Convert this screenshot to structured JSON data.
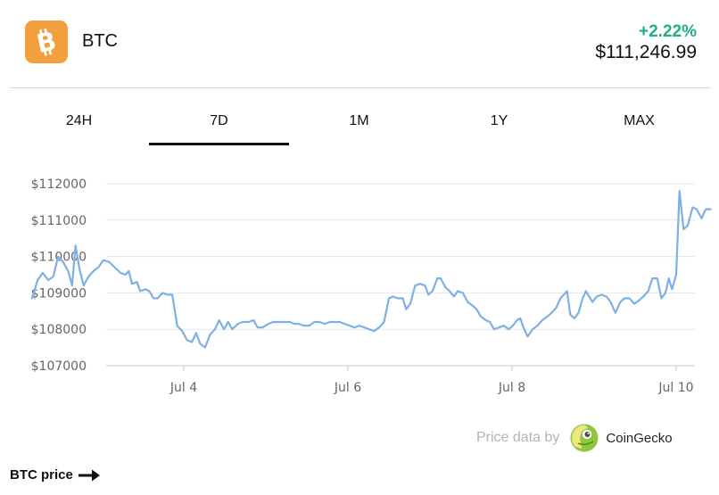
{
  "coin": {
    "symbol": "BTC",
    "change": "+2.22%",
    "price": "$111,246.99",
    "logo_color": "#f2a03d",
    "change_color": "#1fae8a",
    "icon": "bitcoin-icon"
  },
  "tabs": [
    {
      "label": "24H",
      "active": false
    },
    {
      "label": "7D",
      "active": true
    },
    {
      "label": "1M",
      "active": false
    },
    {
      "label": "1Y",
      "active": false
    },
    {
      "label": "MAX",
      "active": false
    }
  ],
  "chart_data": {
    "type": "line",
    "y_ticks": [
      "$112000",
      "$111000",
      "$110000",
      "$109000",
      "$108000",
      "$107000"
    ],
    "y_tick_values": [
      112000,
      111000,
      110000,
      109000,
      108000,
      107000
    ],
    "x_ticks": [
      "Jul 4",
      "Jul 6",
      "Jul 8",
      "Jul 10"
    ],
    "x_tick_values": [
      1.0,
      3.0,
      5.0,
      7.0
    ],
    "ylim": [
      107000,
      112100
    ],
    "xlim": [
      -0.9,
      7.15
    ],
    "grid": true,
    "line_color": "#7eb0e4",
    "series": [
      {
        "values": [
          [
            -0.85,
            108850
          ],
          [
            -0.78,
            109350
          ],
          [
            -0.72,
            109550
          ],
          [
            -0.65,
            109350
          ],
          [
            -0.59,
            109450
          ],
          [
            -0.53,
            110000
          ],
          [
            -0.47,
            109850
          ],
          [
            -0.41,
            109600
          ],
          [
            -0.36,
            109200
          ],
          [
            -0.32,
            110300
          ],
          [
            -0.27,
            109650
          ],
          [
            -0.22,
            109200
          ],
          [
            -0.16,
            109450
          ],
          [
            -0.1,
            109600
          ],
          [
            -0.04,
            109700
          ],
          [
            0.02,
            109900
          ],
          [
            0.09,
            109850
          ],
          [
            0.16,
            109700
          ],
          [
            0.23,
            109550
          ],
          [
            0.29,
            109500
          ],
          [
            0.33,
            109600
          ],
          [
            0.37,
            109250
          ],
          [
            0.43,
            109300
          ],
          [
            0.47,
            109050
          ],
          [
            0.53,
            109100
          ],
          [
            0.58,
            109050
          ],
          [
            0.63,
            108850
          ],
          [
            0.68,
            108850
          ],
          [
            0.74,
            109000
          ],
          [
            0.8,
            108950
          ],
          [
            0.86,
            108950
          ],
          [
            0.92,
            108100
          ],
          [
            0.98,
            107950
          ],
          [
            1.04,
            107700
          ],
          [
            1.1,
            107650
          ],
          [
            1.15,
            107900
          ],
          [
            1.2,
            107600
          ],
          [
            1.26,
            107500
          ],
          [
            1.32,
            107850
          ],
          [
            1.38,
            108000
          ],
          [
            1.43,
            108250
          ],
          [
            1.49,
            108000
          ],
          [
            1.54,
            108200
          ],
          [
            1.59,
            108000
          ],
          [
            1.66,
            108150
          ],
          [
            1.72,
            108200
          ],
          [
            1.79,
            108200
          ],
          [
            1.85,
            108250
          ],
          [
            1.9,
            108050
          ],
          [
            1.96,
            108050
          ],
          [
            2.03,
            108150
          ],
          [
            2.09,
            108200
          ],
          [
            2.16,
            108200
          ],
          [
            2.22,
            108200
          ],
          [
            2.29,
            108200
          ],
          [
            2.35,
            108150
          ],
          [
            2.4,
            108150
          ],
          [
            2.46,
            108100
          ],
          [
            2.53,
            108100
          ],
          [
            2.59,
            108200
          ],
          [
            2.65,
            108200
          ],
          [
            2.72,
            108150
          ],
          [
            2.78,
            108200
          ],
          [
            2.84,
            108200
          ],
          [
            2.9,
            108200
          ],
          [
            2.96,
            108150
          ],
          [
            3.02,
            108100
          ],
          [
            3.08,
            108050
          ],
          [
            3.14,
            108100
          ],
          [
            3.2,
            108050
          ],
          [
            3.26,
            108000
          ],
          [
            3.32,
            107950
          ],
          [
            3.38,
            108050
          ],
          [
            3.44,
            108200
          ],
          [
            3.5,
            108850
          ],
          [
            3.55,
            108900
          ],
          [
            3.61,
            108850
          ],
          [
            3.67,
            108850
          ],
          [
            3.71,
            108550
          ],
          [
            3.76,
            108700
          ],
          [
            3.82,
            109200
          ],
          [
            3.88,
            109250
          ],
          [
            3.94,
            109200
          ],
          [
            3.98,
            108950
          ],
          [
            4.03,
            109050
          ],
          [
            4.09,
            109400
          ],
          [
            4.13,
            109400
          ],
          [
            4.19,
            109150
          ],
          [
            4.24,
            109050
          ],
          [
            4.29,
            108900
          ],
          [
            4.34,
            109050
          ],
          [
            4.4,
            109000
          ],
          [
            4.46,
            108750
          ],
          [
            4.52,
            108650
          ],
          [
            4.57,
            108550
          ],
          [
            4.62,
            108350
          ],
          [
            4.68,
            108250
          ],
          [
            4.73,
            108200
          ],
          [
            4.78,
            108000
          ],
          [
            4.84,
            108050
          ],
          [
            4.9,
            108100
          ],
          [
            4.96,
            108000
          ],
          [
            5.01,
            108100
          ],
          [
            5.06,
            108250
          ],
          [
            5.1,
            108300
          ],
          [
            5.14,
            108050
          ],
          [
            5.19,
            107800
          ],
          [
            5.25,
            108000
          ],
          [
            5.31,
            108100
          ],
          [
            5.37,
            108250
          ],
          [
            5.43,
            108350
          ],
          [
            5.48,
            108450
          ],
          [
            5.54,
            108600
          ],
          [
            5.59,
            108850
          ],
          [
            5.63,
            108950
          ],
          [
            5.67,
            109050
          ],
          [
            5.71,
            108400
          ],
          [
            5.76,
            108300
          ],
          [
            5.81,
            108450
          ],
          [
            5.86,
            108850
          ],
          [
            5.9,
            109050
          ],
          [
            5.94,
            108900
          ],
          [
            5.98,
            108750
          ],
          [
            6.03,
            108900
          ],
          [
            6.09,
            108950
          ],
          [
            6.15,
            108900
          ],
          [
            6.2,
            108750
          ],
          [
            6.26,
            108450
          ],
          [
            6.32,
            108750
          ],
          [
            6.37,
            108850
          ],
          [
            6.43,
            108850
          ],
          [
            6.49,
            108700
          ],
          [
            6.55,
            108800
          ],
          [
            6.6,
            108900
          ],
          [
            6.66,
            109050
          ],
          [
            6.71,
            109400
          ],
          [
            6.77,
            109400
          ],
          [
            6.82,
            108850
          ],
          [
            6.87,
            109000
          ],
          [
            6.91,
            109400
          ],
          [
            6.95,
            109100
          ],
          [
            7.0,
            109500
          ],
          [
            7.04,
            111800
          ],
          [
            7.09,
            110750
          ],
          [
            7.14,
            110850
          ],
          [
            7.2,
            111350
          ],
          [
            7.25,
            111300
          ],
          [
            7.31,
            111050
          ],
          [
            7.36,
            111300
          ],
          [
            7.42,
            111300
          ]
        ]
      }
    ]
  },
  "attribution": {
    "label": "Price data by",
    "provider": "CoinGecko",
    "icon": "coingecko-icon"
  },
  "footer": {
    "link_label": "BTC price",
    "icon": "arrow-right-icon"
  }
}
